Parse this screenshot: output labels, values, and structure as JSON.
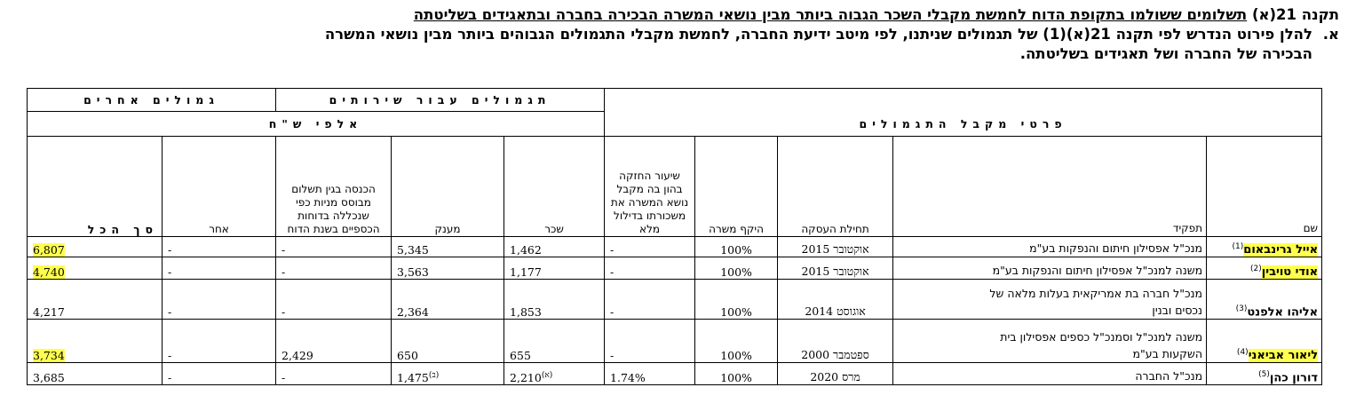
{
  "header": {
    "line1_prefix": "תקנה 21(א) ",
    "line1_title": "תשלומים ששולמו בתקופת הדוח לחמשת מקבלי השכר הגבוה ביותר מבין נושאי המשרה הבכירה בחברה ובתאגידים בשליטתה",
    "letter": "א.",
    "line2": "להלן פירוט הנדרש לפי תקנה 21(א)(1) של תגמולים שניתנו, לפי מיטב ידיעת החברה, לחמשת מקבלי התגמולים הגבוהים ביותר מבין נושאי המשרה",
    "line3": "הבכירה של החברה ושל תאגידים בשליטתה."
  },
  "table": {
    "group_recipient": "פרטי מקבל התגמולים",
    "group_services": "תגמולים עבור שירותים",
    "group_other": "גמולים אחרים",
    "group_units": "אלפי ש\"ח",
    "columns": {
      "name": "שם",
      "role": "תפקיד",
      "start": "תחילת העסקה",
      "scope": "היקף משרה",
      "holding": "שיעור החזקה בהון בה מקבל נושא המשרה את משכורתו בדילול מלא",
      "salary": "שכר",
      "grant": "מענק",
      "share_income": "הכנסה בגין תשלום מבוסס מניות כפי שנכללה בדוחות הכספיים בשנת הדוח",
      "other": "אחר",
      "total": "סך הכל"
    },
    "rows": [
      {
        "name": "אייל גרינבאום",
        "note": "(1)",
        "role": "מנכ\"ל אפסילון חיתום והנפקות בע\"מ",
        "start": "אוקטובר 2015",
        "scope": "100%",
        "holding": "-",
        "salary": "1,462",
        "grant": "5,345",
        "share_income": "-",
        "other": "-",
        "total": "6,807"
      },
      {
        "name": "אודי טויבין",
        "note": "(2)",
        "role": "משנה למנכ\"ל אפסילון חיתום והנפקות בע\"מ",
        "start": "אוקטובר 2015",
        "scope": "100%",
        "holding": "-",
        "salary": "1,177",
        "grant": "3,563",
        "share_income": "-",
        "other": "-",
        "total": "4,740"
      },
      {
        "name": "אליהו אלפנט",
        "note": "(3)",
        "role_line1": "מנכ\"ל חברה בת אמריקאית בעלות מלאה של",
        "role_line2": "נכסים ובנין",
        "start": "אוגוסט 2014",
        "scope": "100%",
        "holding": "-",
        "salary": "1,853",
        "grant": "2,364",
        "share_income": "-",
        "other": "-",
        "total": "4,217"
      },
      {
        "name": "ליאור אביאני",
        "note": "(4)",
        "role_line1": "משנה למנכ\"ל וסמנכ\"ל כספים אפסילון בית",
        "role_line2": "השקעות בע\"מ",
        "start": "ספטמבר 2000",
        "scope": "100%",
        "holding": "-",
        "salary": "655",
        "grant": "650",
        "share_income": "2,429",
        "other": "-",
        "total": "3,734"
      },
      {
        "name": "דורון כהן",
        "note": "(5)",
        "role": "מנכ\"ל החברה",
        "start": "מרס 2020",
        "scope": "100%",
        "holding": "1.74%",
        "salary": "2,210",
        "salary_note": "(א)",
        "grant": "1,475",
        "grant_note": "(ב)",
        "share_income": "-",
        "other": "-",
        "total": "3,685"
      }
    ]
  },
  "colors": {
    "highlight": "#ffff4d"
  }
}
